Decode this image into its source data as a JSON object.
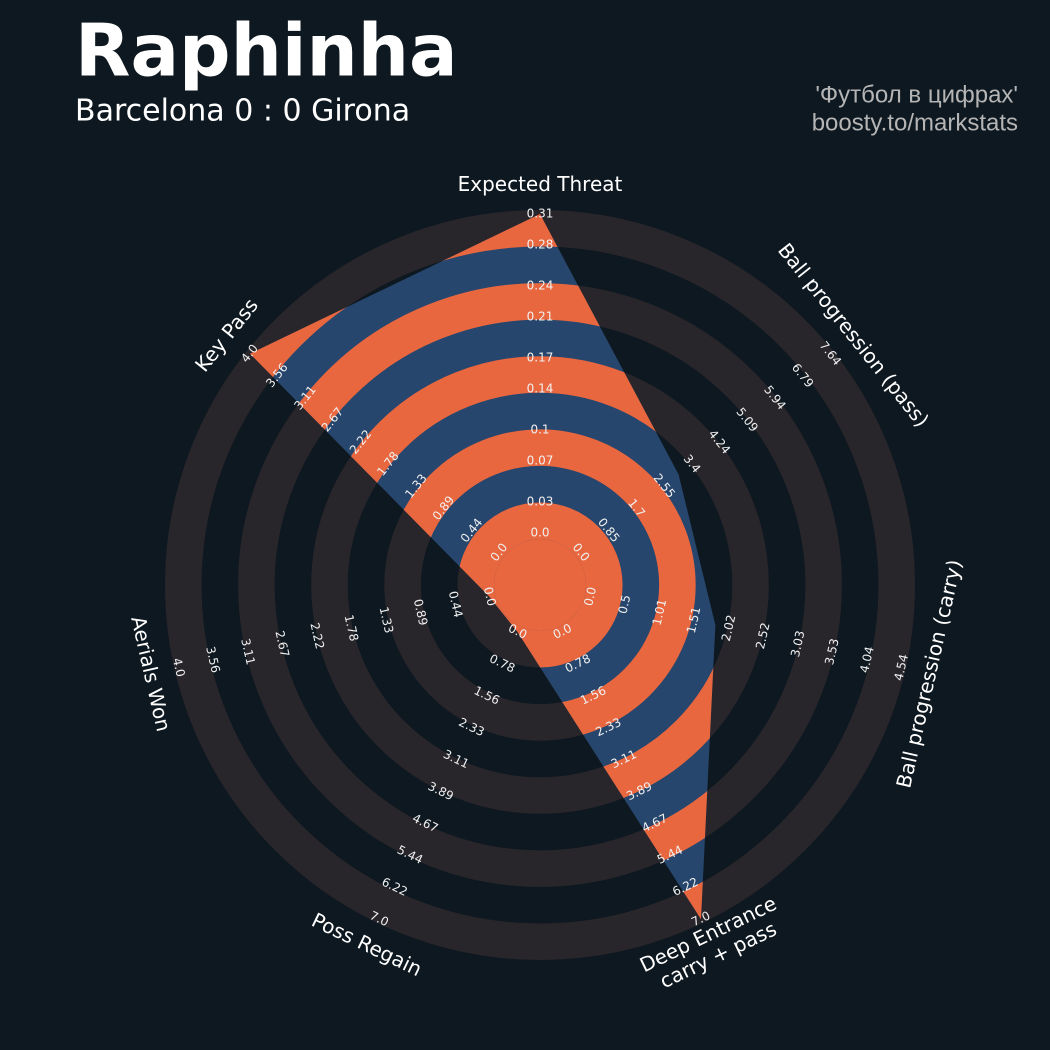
{
  "chart_data": {
    "type": "radar",
    "title": "Raphinha",
    "subtitle": "Barcelona 0 : 0 Girona",
    "credits": [
      "'Футбол в цифрах'",
      "boosty.to/markstats"
    ],
    "categories": [
      "Expected Threat",
      "Ball progression (pass)",
      "Ball progression (carry)",
      "Deep Entrance\ncarry + pass",
      "Poss Regain",
      "Aerials Won",
      "Key Pass"
    ],
    "values": [
      0.31,
      3.0,
      1.82,
      7.0,
      0,
      0,
      4.0
    ],
    "color": "#27466d",
    "ring_color": "#e8673f",
    "background_ring_color": "#29262b",
    "background_color": "#0e1820",
    "axes": [
      {
        "lim": [
          0,
          0.31
        ],
        "ticks": [
          {
            "value": 0,
            "label": "0.0"
          },
          0.03,
          0.07,
          0.1,
          0.14,
          0.17,
          0.21,
          0.24,
          0.28,
          0.31
        ]
      },
      {
        "lim": [
          0,
          7.64
        ],
        "ticks": [
          {
            "value": 0,
            "label": "0.0"
          },
          0.85,
          1.7,
          2.55,
          3.4,
          4.24,
          5.09,
          5.94,
          6.79,
          7.64
        ]
      },
      {
        "lim": [
          0,
          4.54
        ],
        "ticks": [
          {
            "value": 0,
            "label": "0.0"
          },
          0.5,
          1.01,
          1.51,
          2.02,
          2.52,
          3.03,
          3.53,
          4.04,
          4.54
        ]
      },
      {
        "lim": [
          0,
          7
        ],
        "ticks": [
          {
            "value": 0,
            "label": "0.0"
          },
          0.78,
          1.56,
          2.33,
          3.11,
          3.89,
          4.67,
          5.44,
          6.22,
          {
            "value": 7,
            "label": "7.0"
          }
        ]
      },
      {
        "lim": [
          0,
          7
        ],
        "ticks": [
          {
            "value": 0,
            "label": "0.0"
          },
          0.78,
          1.56,
          2.33,
          3.11,
          3.89,
          4.67,
          5.44,
          6.22,
          {
            "value": 7,
            "label": "7.0"
          }
        ]
      },
      {
        "lim": [
          0,
          4
        ],
        "ticks": [
          {
            "value": 0,
            "label": "0.0"
          },
          0.44,
          0.89,
          1.33,
          1.78,
          2.22,
          2.67,
          3.11,
          3.56,
          {
            "value": 4,
            "label": "4.0"
          }
        ]
      },
      {
        "lim": [
          0,
          4
        ],
        "ticks": [
          {
            "value": 0,
            "label": "0.0"
          },
          0.44,
          0.89,
          1.33,
          1.78,
          2.22,
          2.67,
          3.11,
          3.56,
          {
            "value": 4,
            "label": "4.0"
          }
        ]
      }
    ]
  }
}
